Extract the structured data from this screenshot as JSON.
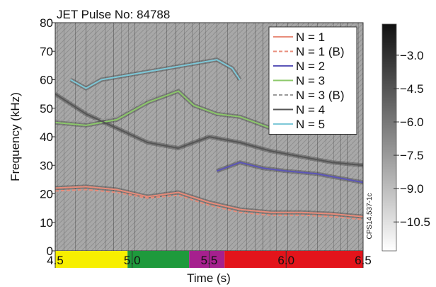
{
  "chart_data": {
    "type": "heatmap",
    "title": "JET Pulse No: 84788",
    "xlabel": "Time (s)",
    "ylabel": "Frequency (kHz)",
    "xlim": [
      4.5,
      6.5
    ],
    "ylim": [
      0,
      80
    ],
    "x_ticks": [
      "4.5",
      "5.0",
      "5.5",
      "6.0",
      "6.5"
    ],
    "y_ticks": [
      "0",
      "10",
      "20",
      "30",
      "40",
      "50",
      "60",
      "70",
      "80"
    ],
    "x_tick_values": [
      4.5,
      5.0,
      5.5,
      6.0,
      6.5
    ],
    "y_tick_values": [
      0,
      10,
      20,
      30,
      40,
      50,
      60,
      70,
      80
    ],
    "colorbar": {
      "ticks": [
        "−3.0",
        "−4.5",
        "−6.0",
        "−7.5",
        "−9.0",
        "−10.5"
      ],
      "values": [
        -3.0,
        -4.5,
        -6.0,
        -7.5,
        -9.0,
        -10.5
      ],
      "range": [
        -11.8,
        -1.6
      ]
    },
    "annotation": "CPS14.537-1c",
    "legend_position": "top-right",
    "phase_bands": [
      {
        "start": 4.5,
        "end": 4.97,
        "color": "#f7ef00"
      },
      {
        "start": 4.97,
        "end": 5.37,
        "color": "#1e9a3c"
      },
      {
        "start": 5.37,
        "end": 5.6,
        "color": "#a6208e"
      },
      {
        "start": 5.6,
        "end": 6.5,
        "color": "#e3141b"
      }
    ],
    "series": [
      {
        "name": "N = 1",
        "color": "#e88c7a",
        "dash": false,
        "points": [
          [
            4.5,
            22
          ],
          [
            4.7,
            22.5
          ],
          [
            4.9,
            21.5
          ],
          [
            5.1,
            19
          ],
          [
            5.3,
            20.5
          ],
          [
            5.5,
            17
          ],
          [
            5.7,
            14.5
          ],
          [
            5.9,
            13.5
          ],
          [
            6.1,
            13.5
          ],
          [
            6.3,
            13
          ],
          [
            6.5,
            12
          ]
        ]
      },
      {
        "name": "N = 1 (B)",
        "color": "#e88c7a",
        "dash": true,
        "points": [
          [
            4.5,
            21
          ],
          [
            4.7,
            21.5
          ],
          [
            4.9,
            20.5
          ],
          [
            5.1,
            18.5
          ],
          [
            5.3,
            19.5
          ],
          [
            5.5,
            16
          ],
          [
            5.7,
            13.5
          ],
          [
            5.9,
            12.5
          ],
          [
            6.1,
            12.5
          ],
          [
            6.3,
            12
          ],
          [
            6.5,
            11
          ]
        ]
      },
      {
        "name": "N = 2",
        "color": "#5b55b8",
        "dash": false,
        "points": [
          [
            5.55,
            28
          ],
          [
            5.7,
            31
          ],
          [
            5.85,
            29
          ],
          [
            6.0,
            28
          ],
          [
            6.2,
            27
          ],
          [
            6.4,
            25
          ],
          [
            6.5,
            24
          ]
        ]
      },
      {
        "name": "N = 3",
        "color": "#8cc86a",
        "dash": false,
        "points": [
          [
            4.5,
            45
          ],
          [
            4.7,
            44
          ],
          [
            4.9,
            46
          ],
          [
            5.1,
            52
          ],
          [
            5.3,
            56
          ],
          [
            5.4,
            51
          ],
          [
            5.55,
            48
          ],
          [
            5.7,
            47
          ],
          [
            5.9,
            43
          ]
        ]
      },
      {
        "name": "N = 3 (B)",
        "color": "#9a9a9a",
        "dash": true,
        "points": [
          [
            4.5,
            46
          ],
          [
            4.7,
            45
          ],
          [
            4.9,
            47
          ],
          [
            5.1,
            53
          ],
          [
            5.3,
            57
          ]
        ]
      },
      {
        "name": "N = 4",
        "color": "#555555",
        "dash": false,
        "points": [
          [
            4.5,
            55
          ],
          [
            4.7,
            48
          ],
          [
            4.9,
            43
          ],
          [
            5.1,
            38
          ],
          [
            5.3,
            36
          ],
          [
            5.5,
            40
          ],
          [
            5.7,
            38
          ],
          [
            5.9,
            35
          ],
          [
            6.1,
            33
          ],
          [
            6.3,
            31
          ],
          [
            6.5,
            30
          ]
        ]
      },
      {
        "name": "N = 5",
        "color": "#7ec8d8",
        "dash": false,
        "points": [
          [
            4.6,
            60
          ],
          [
            4.7,
            57
          ],
          [
            4.8,
            60
          ],
          [
            5.55,
            67
          ],
          [
            5.65,
            64
          ],
          [
            5.7,
            60
          ]
        ]
      }
    ]
  }
}
